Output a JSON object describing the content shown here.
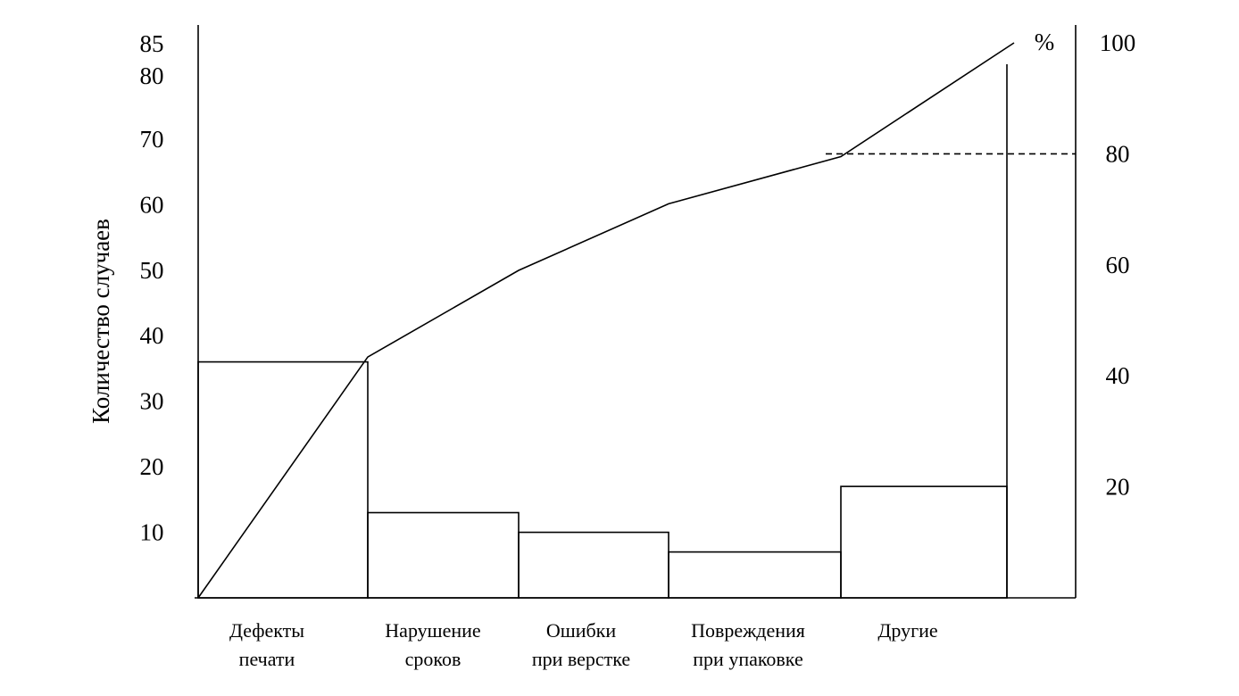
{
  "chart_data": {
    "type": "bar",
    "title": "",
    "xlabel": "",
    "ylabel": "Количество случаев",
    "y2label": "%",
    "categories": [
      [
        "Дефекты",
        "печати"
      ],
      [
        "Нарушение",
        "сроков"
      ],
      [
        "Ошибки",
        "при верстке"
      ],
      [
        "Повреждения",
        "при упаковке"
      ],
      [
        "Другие"
      ]
    ],
    "values": [
      36,
      13,
      10,
      7,
      17
    ],
    "cumulative_percent": [
      0,
      43.4,
      59,
      71,
      79.5,
      100
    ],
    "ylim": [
      0,
      85
    ],
    "y2lim": [
      0,
      100
    ],
    "yticks": [
      "10",
      "20",
      "30",
      "40",
      "50",
      "60",
      "70",
      "80",
      "85"
    ],
    "y2ticks": [
      "20",
      "40",
      "60",
      "80",
      "100"
    ],
    "reference_line_percent": 80,
    "grid": false,
    "legend": "none"
  }
}
